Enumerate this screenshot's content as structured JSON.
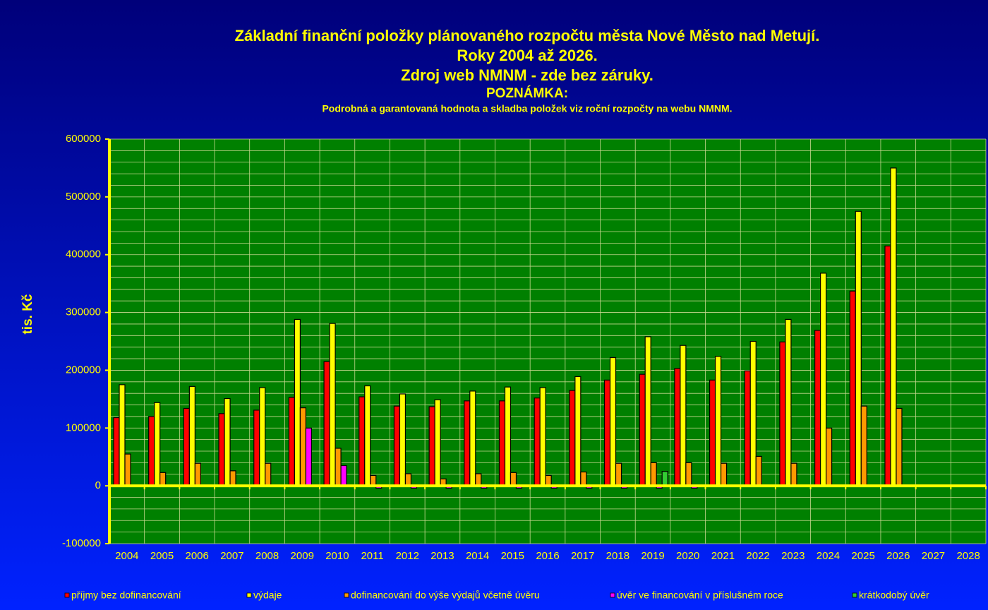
{
  "chart_data": {
    "type": "bar",
    "title": [
      "Základní finanční položky plánovaného rozpočtu města Nové Město nad Metují.",
      "Roky 2004 až 2026.",
      "Zdroj web NMNM - zde bez záruky."
    ],
    "note_title": "POZNÁMKA:",
    "note": "Podrobná a garantovaná hodnota a skladba položek viz roční rozpočty na webu NMNM.",
    "y_label": "tis. Kč",
    "categories": [
      "2004",
      "2005",
      "2006",
      "2007",
      "2008",
      "2009",
      "2010",
      "2011",
      "2012",
      "2013",
      "2014",
      "2015",
      "2016",
      "2017",
      "2018",
      "2019",
      "2020",
      "2021",
      "2022",
      "2023",
      "2024",
      "2025",
      "2026",
      "2027",
      "2028"
    ],
    "series": [
      {
        "name": "příjmy bez dofinancování",
        "color": "#ff0000",
        "values": [
          118000,
          120000,
          134000,
          125000,
          131000,
          153000,
          215000,
          154000,
          138000,
          137000,
          147000,
          147000,
          152000,
          165000,
          183000,
          193000,
          203000,
          183000,
          199000,
          249000,
          269000,
          337000,
          415000,
          null,
          null
        ]
      },
      {
        "name": "výdaje",
        "color": "#ffff00",
        "values": [
          175000,
          144000,
          172000,
          151000,
          170000,
          288000,
          281000,
          173000,
          159000,
          149000,
          164000,
          171000,
          170000,
          189000,
          222000,
          258000,
          243000,
          224000,
          250000,
          288000,
          368000,
          475000,
          550000,
          null,
          null
        ]
      },
      {
        "name": "dofinancování do výše výdajů včetně úvěru",
        "color": "#ff9900",
        "values": [
          55000,
          23000,
          39000,
          26000,
          39000,
          135000,
          65000,
          18000,
          21000,
          12000,
          21000,
          23000,
          18000,
          24000,
          39000,
          40000,
          40000,
          39000,
          51000,
          39000,
          100000,
          138000,
          134000,
          null,
          null
        ]
      },
      {
        "name": "úvěr ve financování v příslušném roce",
        "color": "#ff00ff",
        "values": [
          null,
          null,
          null,
          null,
          null,
          100000,
          35000,
          -4000,
          -4000,
          -4000,
          -4000,
          -4000,
          -4000,
          -4000,
          -4000,
          -4000,
          -4000,
          null,
          null,
          null,
          null,
          null,
          null,
          null,
          null
        ]
      },
      {
        "name": "krátkodobý úvěr",
        "color": "#33cc33",
        "values": [
          null,
          null,
          null,
          null,
          null,
          null,
          null,
          null,
          null,
          null,
          null,
          null,
          null,
          null,
          null,
          25000,
          null,
          null,
          null,
          null,
          null,
          null,
          null,
          null,
          null
        ]
      }
    ],
    "ylim": [
      -100000,
      600000
    ],
    "yticks": [
      -100000,
      0,
      100000,
      200000,
      300000,
      400000,
      500000,
      600000
    ],
    "minor_grid_step": 20000,
    "grid": true,
    "plot_color": "#008000",
    "axis_color": "#ffff00",
    "legend": "bottom"
  }
}
